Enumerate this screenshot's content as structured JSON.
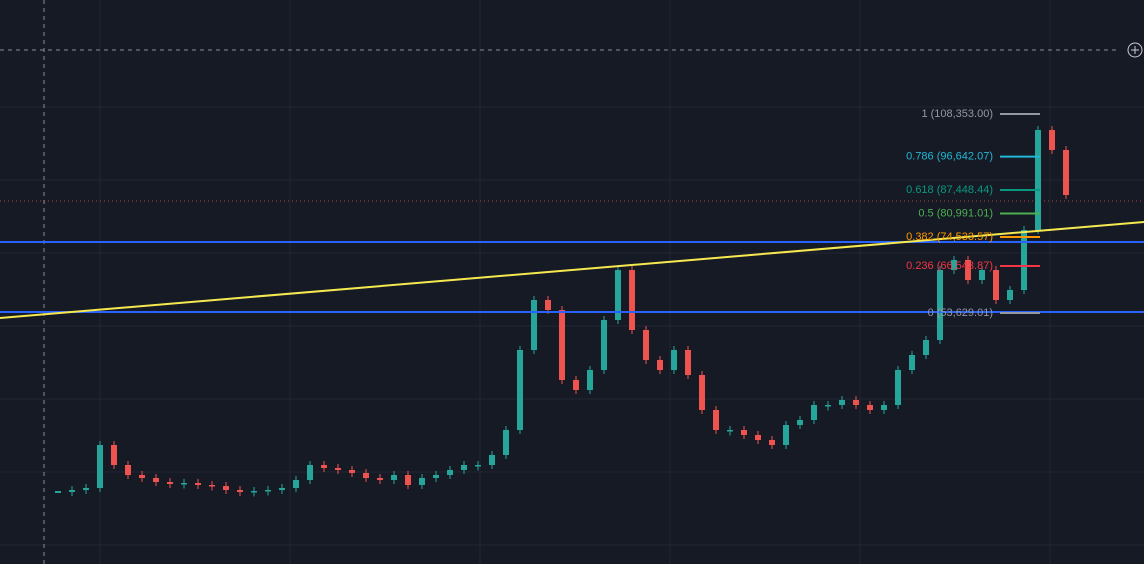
{
  "fib_levels": [
    {
      "label": "1 (108,353.00)",
      "price": 108353,
      "color": "#9598a1"
    },
    {
      "label": "0.786 (96,642.07)",
      "price": 96642.07,
      "color": "#22b8d6"
    },
    {
      "label": "0.618 (87,448.44)",
      "price": 87448.44,
      "color": "#089981"
    },
    {
      "label": "0.5 (80,991.01)",
      "price": 80991.01,
      "color": "#4caf50"
    },
    {
      "label": "0.382 (74,533.57)",
      "price": 74533.57,
      "color": "#ff9800"
    },
    {
      "label": "0.236 (66,543.87)",
      "price": 66543.87,
      "color": "#f23645"
    },
    {
      "label": "0 (53,629.01)",
      "price": 53629.01,
      "color": "#9598a1"
    }
  ],
  "price": {
    "up_color": "#26a69a",
    "down_color": "#ef5350",
    "closes": [
      4404,
      4954,
      5504,
      17329,
      11829,
      9079,
      8254,
      7154,
      6604,
      6879,
      6329,
      6054,
      4954,
      4404,
      4679,
      4954,
      5504,
      7704,
      11829,
      11004,
      10454,
      9629,
      8254,
      7704,
      9079,
      6329,
      8254,
      9079,
      10454,
      11829,
      11829,
      14579,
      21454,
      43454,
      57204,
      54454,
      35204,
      32454,
      37954,
      51704,
      65454,
      48954,
      40704,
      37954,
      43454,
      36579,
      26954,
      21454,
      21454,
      20079,
      18704,
      17329,
      22829,
      24204,
      28329,
      28329,
      29704,
      28329,
      26954,
      28329,
      37954,
      42079,
      46204,
      65454,
      68204,
      62704,
      65454,
      57204,
      59954,
      76454,
      103954,
      98454,
      86079
    ]
  }
}
